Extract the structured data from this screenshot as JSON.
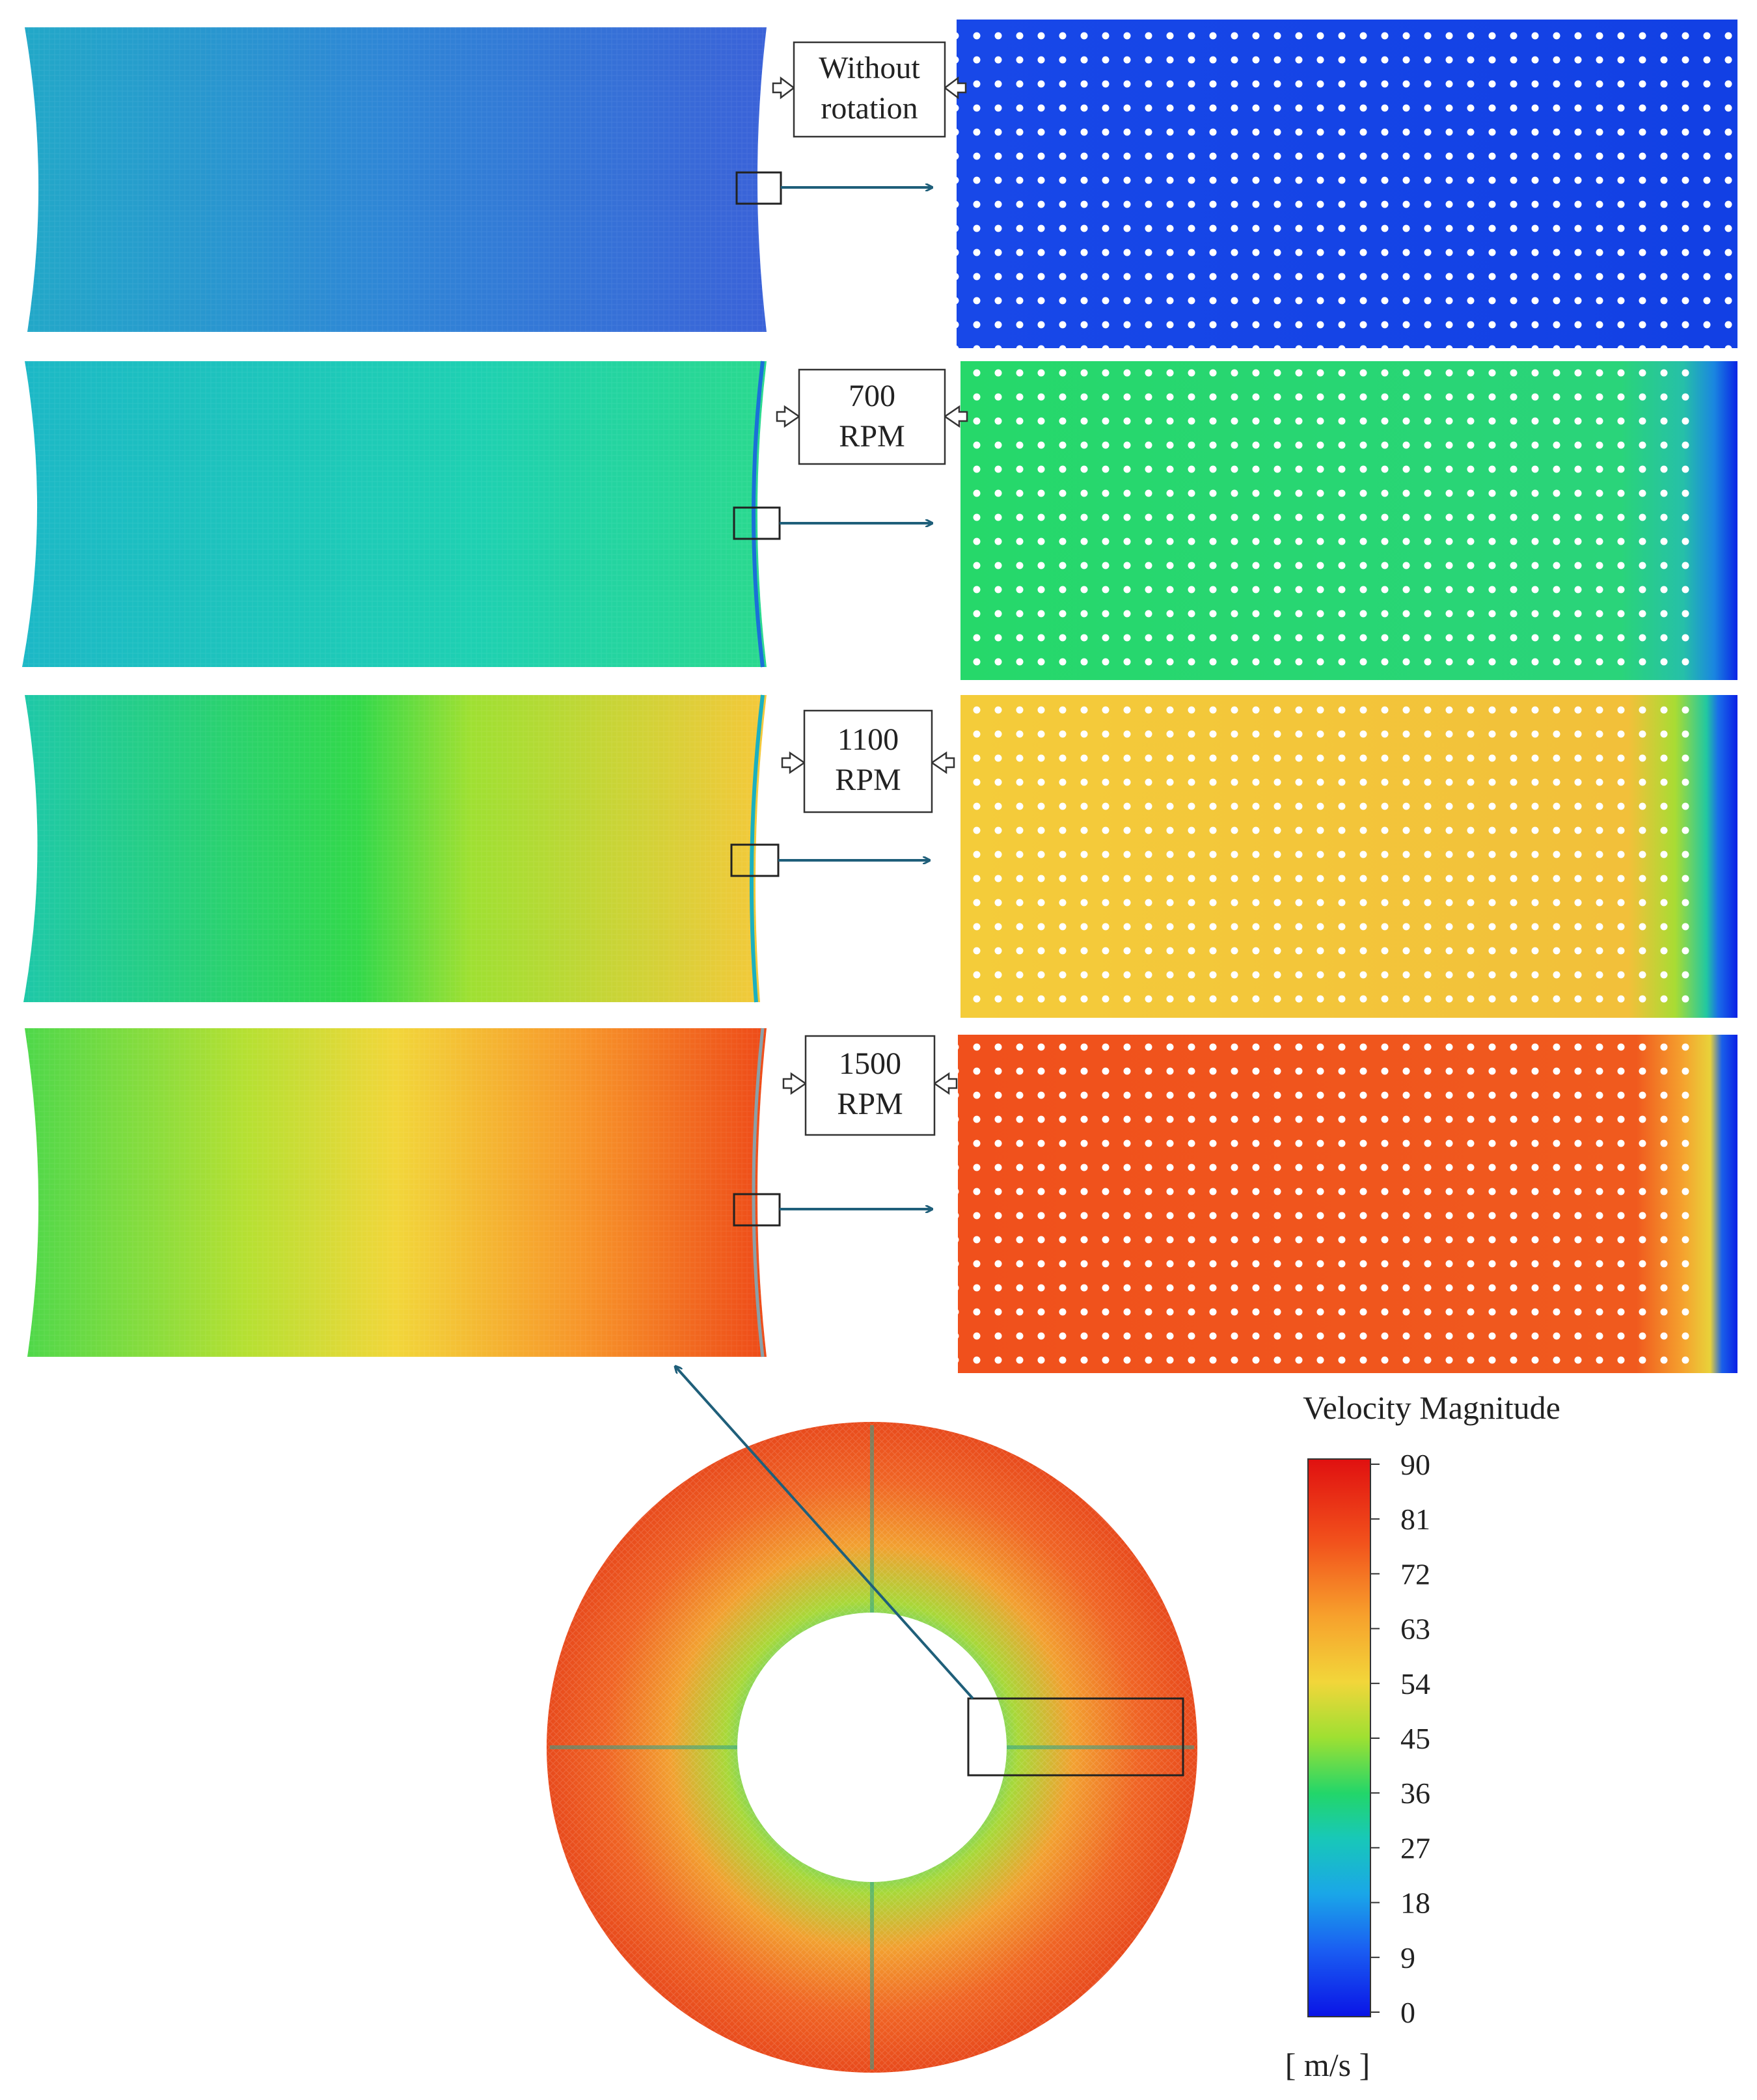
{
  "figure": {
    "rows": [
      {
        "label_line1": "Without",
        "label_line2": "rotation",
        "speed_rpm": 0
      },
      {
        "label_line1": "700",
        "label_line2": "RPM",
        "speed_rpm": 700
      },
      {
        "label_line1": "1100",
        "label_line2": "RPM",
        "speed_rpm": 1100
      },
      {
        "label_line1": "1500",
        "label_line2": "RPM",
        "speed_rpm": 1500
      }
    ]
  },
  "legend": {
    "title": "Velocity Magnitude",
    "unit": "[ m/s ]",
    "ticks": [
      "90",
      "81",
      "72",
      "63",
      "54",
      "45",
      "36",
      "27",
      "18",
      "9",
      "0"
    ],
    "min": 0,
    "max": 90
  },
  "colors": {
    "arrow": "#1f5f7a",
    "box": "#333333",
    "colormap": [
      "#0a14e6",
      "#1e78f0",
      "#16c6cc",
      "#22d66a",
      "#9ee032",
      "#f2d63a",
      "#f79a2c",
      "#f2521c",
      "#e01010"
    ]
  }
}
